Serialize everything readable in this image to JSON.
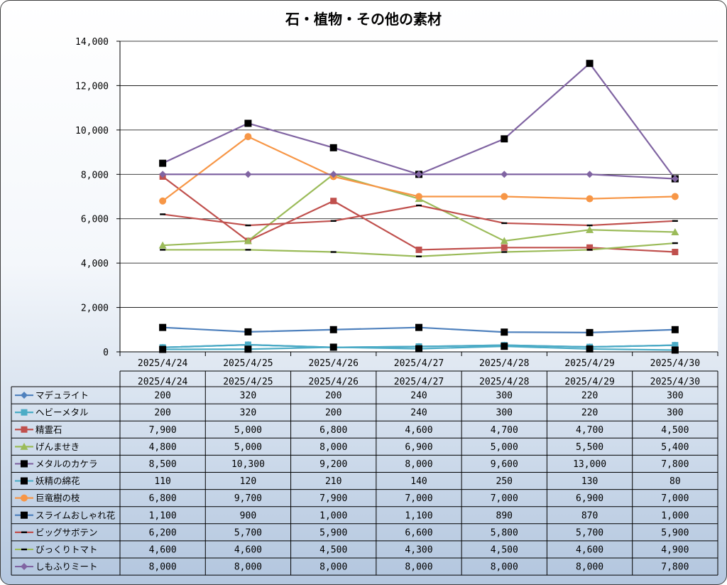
{
  "chart_data": {
    "type": "line",
    "title": "石・植物・その他の素材",
    "xlabel": "",
    "ylabel": "",
    "ylim": [
      0,
      14000
    ],
    "yticks": [
      0,
      2000,
      4000,
      6000,
      8000,
      10000,
      12000,
      14000
    ],
    "ytick_labels": [
      "0",
      "2,000",
      "4,000",
      "6,000",
      "8,000",
      "10,000",
      "12,000",
      "14,000"
    ],
    "grid": true,
    "legend": "data-table-below",
    "categories": [
      "2025/4/24",
      "2025/4/25",
      "2025/4/26",
      "2025/4/27",
      "2025/4/28",
      "2025/4/29",
      "2025/4/30"
    ],
    "series": [
      {
        "name": "マデュライト",
        "color": "#4F81BD",
        "marker": "diamond",
        "values": [
          200,
          320,
          200,
          240,
          300,
          220,
          300
        ],
        "labels": [
          "200",
          "320",
          "200",
          "240",
          "300",
          "220",
          "300"
        ]
      },
      {
        "name": "ヘビーメタル",
        "color": "#4BACC6",
        "marker": "square",
        "values": [
          200,
          320,
          200,
          240,
          300,
          220,
          300
        ],
        "labels": [
          "200",
          "320",
          "200",
          "240",
          "300",
          "220",
          "300"
        ]
      },
      {
        "name": "精霊石",
        "color": "#C0504D",
        "marker": "square",
        "values": [
          7900,
          5000,
          6800,
          4600,
          4700,
          4700,
          4500
        ],
        "labels": [
          "7,900",
          "5,000",
          "6,800",
          "4,600",
          "4,700",
          "4,700",
          "4,500"
        ]
      },
      {
        "name": "げんませき",
        "color": "#9BBB59",
        "marker": "triangle",
        "values": [
          4800,
          5000,
          8000,
          6900,
          5000,
          5500,
          5400
        ],
        "labels": [
          "4,800",
          "5,000",
          "8,000",
          "6,900",
          "5,000",
          "5,500",
          "5,400"
        ]
      },
      {
        "name": "メタルのカケラ",
        "color": "#8064A2",
        "marker": "square-black",
        "values": [
          8500,
          10300,
          9200,
          8000,
          9600,
          13000,
          7800
        ],
        "labels": [
          "8,500",
          "10,300",
          "9,200",
          "8,000",
          "9,600",
          "13,000",
          "7,800"
        ]
      },
      {
        "name": "妖精の綿花",
        "color": "#4BACC6",
        "marker": "square-black",
        "values": [
          110,
          120,
          210,
          140,
          250,
          130,
          80
        ],
        "labels": [
          "110",
          "120",
          "210",
          "140",
          "250",
          "130",
          "80"
        ]
      },
      {
        "name": "巨竜樹の枝",
        "color": "#F79646",
        "marker": "circle",
        "values": [
          6800,
          9700,
          7900,
          7000,
          7000,
          6900,
          7000
        ],
        "labels": [
          "6,800",
          "9,700",
          "7,900",
          "7,000",
          "7,000",
          "6,900",
          "7,000"
        ]
      },
      {
        "name": "スライムおしゃれ花",
        "color": "#4F81BD",
        "marker": "square-black",
        "values": [
          1100,
          900,
          1000,
          1100,
          890,
          870,
          1000
        ],
        "labels": [
          "1,100",
          "900",
          "1,000",
          "1,100",
          "890",
          "870",
          "1,000"
        ]
      },
      {
        "name": "ビッグサボテン",
        "color": "#C0504D",
        "marker": "dash-black",
        "values": [
          6200,
          5700,
          5900,
          6600,
          5800,
          5700,
          5900
        ],
        "labels": [
          "6,200",
          "5,700",
          "5,900",
          "6,600",
          "5,800",
          "5,700",
          "5,900"
        ]
      },
      {
        "name": "びっくりトマト",
        "color": "#9BBB59",
        "marker": "dash-black",
        "values": [
          4600,
          4600,
          4500,
          4300,
          4500,
          4600,
          4900
        ],
        "labels": [
          "4,600",
          "4,600",
          "4,500",
          "4,300",
          "4,500",
          "4,600",
          "4,900"
        ]
      },
      {
        "name": "しもふりミート",
        "color": "#8064A2",
        "marker": "diamond",
        "values": [
          8000,
          8000,
          8000,
          8000,
          8000,
          8000,
          7800
        ],
        "labels": [
          "8,000",
          "8,000",
          "8,000",
          "8,000",
          "8,000",
          "8,000",
          "7,800"
        ]
      }
    ]
  }
}
